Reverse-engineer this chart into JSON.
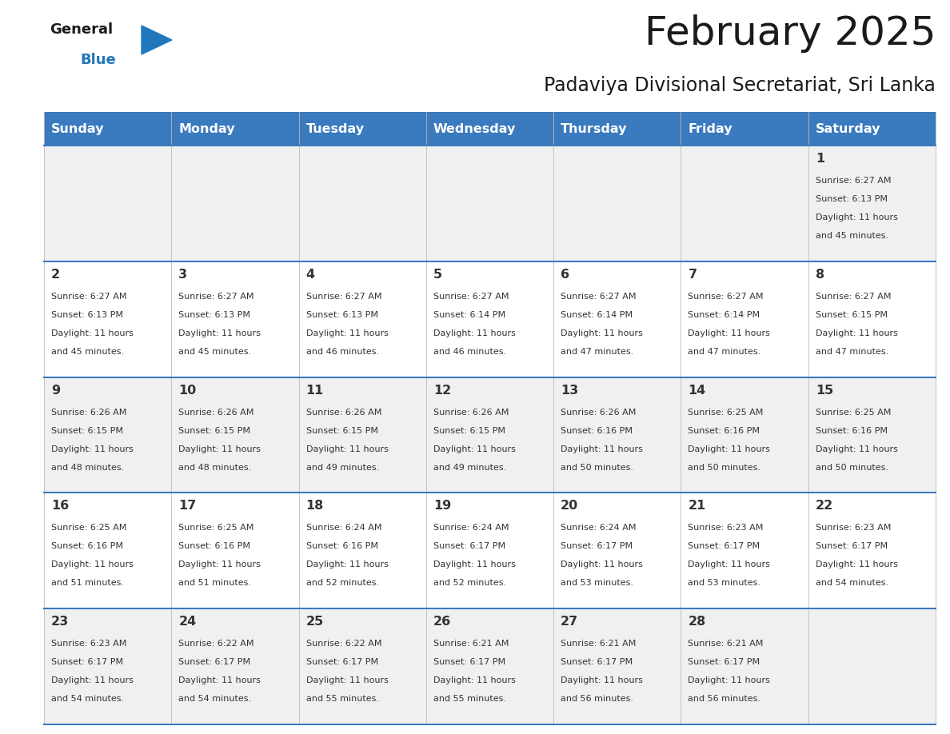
{
  "title": "February 2025",
  "subtitle": "Padaviya Divisional Secretariat, Sri Lanka",
  "header_bg_color": "#3a7abf",
  "header_text_color": "#ffffff",
  "day_names": [
    "Sunday",
    "Monday",
    "Tuesday",
    "Wednesday",
    "Thursday",
    "Friday",
    "Saturday"
  ],
  "row_bg_odd": "#f0f0f0",
  "row_bg_even": "#ffffff",
  "cell_border_color": "#3a7abf",
  "day_number_color": "#333333",
  "info_text_color": "#333333",
  "title_color": "#1a1a1a",
  "subtitle_color": "#1a1a1a",
  "logo_general_color": "#1a1a1a",
  "logo_blue_color": "#2277bb",
  "calendar_data": [
    [
      null,
      null,
      null,
      null,
      null,
      null,
      {
        "day": 1,
        "sunrise": "6:27 AM",
        "sunset": "6:13 PM",
        "daylight": "11 hours and 45 minutes"
      }
    ],
    [
      {
        "day": 2,
        "sunrise": "6:27 AM",
        "sunset": "6:13 PM",
        "daylight": "11 hours and 45 minutes"
      },
      {
        "day": 3,
        "sunrise": "6:27 AM",
        "sunset": "6:13 PM",
        "daylight": "11 hours and 45 minutes"
      },
      {
        "day": 4,
        "sunrise": "6:27 AM",
        "sunset": "6:13 PM",
        "daylight": "11 hours and 46 minutes"
      },
      {
        "day": 5,
        "sunrise": "6:27 AM",
        "sunset": "6:14 PM",
        "daylight": "11 hours and 46 minutes"
      },
      {
        "day": 6,
        "sunrise": "6:27 AM",
        "sunset": "6:14 PM",
        "daylight": "11 hours and 47 minutes"
      },
      {
        "day": 7,
        "sunrise": "6:27 AM",
        "sunset": "6:14 PM",
        "daylight": "11 hours and 47 minutes"
      },
      {
        "day": 8,
        "sunrise": "6:27 AM",
        "sunset": "6:15 PM",
        "daylight": "11 hours and 47 minutes"
      }
    ],
    [
      {
        "day": 9,
        "sunrise": "6:26 AM",
        "sunset": "6:15 PM",
        "daylight": "11 hours and 48 minutes"
      },
      {
        "day": 10,
        "sunrise": "6:26 AM",
        "sunset": "6:15 PM",
        "daylight": "11 hours and 48 minutes"
      },
      {
        "day": 11,
        "sunrise": "6:26 AM",
        "sunset": "6:15 PM",
        "daylight": "11 hours and 49 minutes"
      },
      {
        "day": 12,
        "sunrise": "6:26 AM",
        "sunset": "6:15 PM",
        "daylight": "11 hours and 49 minutes"
      },
      {
        "day": 13,
        "sunrise": "6:26 AM",
        "sunset": "6:16 PM",
        "daylight": "11 hours and 50 minutes"
      },
      {
        "day": 14,
        "sunrise": "6:25 AM",
        "sunset": "6:16 PM",
        "daylight": "11 hours and 50 minutes"
      },
      {
        "day": 15,
        "sunrise": "6:25 AM",
        "sunset": "6:16 PM",
        "daylight": "11 hours and 50 minutes"
      }
    ],
    [
      {
        "day": 16,
        "sunrise": "6:25 AM",
        "sunset": "6:16 PM",
        "daylight": "11 hours and 51 minutes"
      },
      {
        "day": 17,
        "sunrise": "6:25 AM",
        "sunset": "6:16 PM",
        "daylight": "11 hours and 51 minutes"
      },
      {
        "day": 18,
        "sunrise": "6:24 AM",
        "sunset": "6:16 PM",
        "daylight": "11 hours and 52 minutes"
      },
      {
        "day": 19,
        "sunrise": "6:24 AM",
        "sunset": "6:17 PM",
        "daylight": "11 hours and 52 minutes"
      },
      {
        "day": 20,
        "sunrise": "6:24 AM",
        "sunset": "6:17 PM",
        "daylight": "11 hours and 53 minutes"
      },
      {
        "day": 21,
        "sunrise": "6:23 AM",
        "sunset": "6:17 PM",
        "daylight": "11 hours and 53 minutes"
      },
      {
        "day": 22,
        "sunrise": "6:23 AM",
        "sunset": "6:17 PM",
        "daylight": "11 hours and 54 minutes"
      }
    ],
    [
      {
        "day": 23,
        "sunrise": "6:23 AM",
        "sunset": "6:17 PM",
        "daylight": "11 hours and 54 minutes"
      },
      {
        "day": 24,
        "sunrise": "6:22 AM",
        "sunset": "6:17 PM",
        "daylight": "11 hours and 54 minutes"
      },
      {
        "day": 25,
        "sunrise": "6:22 AM",
        "sunset": "6:17 PM",
        "daylight": "11 hours and 55 minutes"
      },
      {
        "day": 26,
        "sunrise": "6:21 AM",
        "sunset": "6:17 PM",
        "daylight": "11 hours and 55 minutes"
      },
      {
        "day": 27,
        "sunrise": "6:21 AM",
        "sunset": "6:17 PM",
        "daylight": "11 hours and 56 minutes"
      },
      {
        "day": 28,
        "sunrise": "6:21 AM",
        "sunset": "6:17 PM",
        "daylight": "11 hours and 56 minutes"
      },
      null
    ]
  ]
}
